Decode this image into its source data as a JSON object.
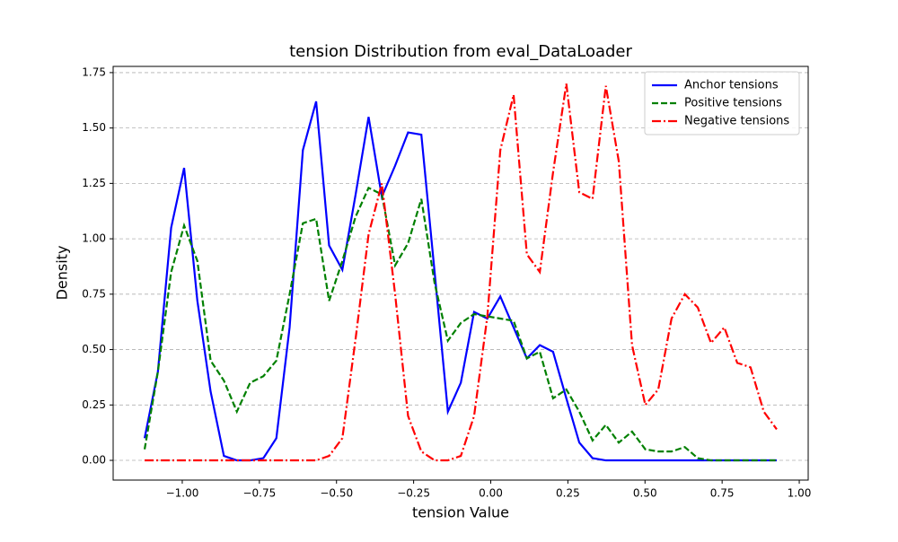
{
  "chart_data": {
    "type": "line",
    "title": "tension Distribution from eval_DataLoader",
    "x_label": "tension Value",
    "y_label": "Density",
    "x": [
      -1.122,
      -1.079,
      -1.036,
      -0.994,
      -0.951,
      -0.908,
      -0.865,
      -0.823,
      -0.78,
      -0.737,
      -0.695,
      -0.652,
      -0.609,
      -0.566,
      -0.524,
      -0.481,
      -0.438,
      -0.396,
      -0.353,
      -0.31,
      -0.268,
      -0.225,
      -0.182,
      -0.139,
      -0.097,
      -0.054,
      -0.011,
      0.031,
      0.074,
      0.117,
      0.159,
      0.202,
      0.245,
      0.287,
      0.33,
      0.373,
      0.415,
      0.458,
      0.501,
      0.543,
      0.586,
      0.629,
      0.671,
      0.714,
      0.757,
      0.799,
      0.842,
      0.885,
      0.927
    ],
    "series": [
      {
        "name": "Anchor tensions",
        "color": "#0000ff",
        "linestyle": "solid",
        "values": [
          0.1,
          0.4,
          1.05,
          1.32,
          0.72,
          0.31,
          0.02,
          0,
          0,
          0.01,
          0.1,
          0.6,
          1.4,
          1.62,
          0.97,
          0.86,
          1.2,
          1.55,
          1.19,
          1.33,
          1.48,
          1.47,
          0.85,
          0.22,
          0.35,
          0.67,
          0.64,
          0.74,
          0.6,
          0.46,
          0.52,
          0.49,
          0.28,
          0.08,
          0.01,
          0,
          0,
          0,
          0,
          0,
          0,
          0,
          0,
          0,
          0,
          0,
          0,
          0,
          0
        ]
      },
      {
        "name": "Positive tensions",
        "color": "#008000",
        "linestyle": "dashed",
        "values": [
          0.05,
          0.4,
          0.85,
          1.06,
          0.9,
          0.45,
          0.36,
          0.22,
          0.35,
          0.38,
          0.45,
          0.75,
          1.07,
          1.09,
          0.72,
          0.9,
          1.1,
          1.23,
          1.2,
          0.88,
          0.98,
          1.18,
          0.8,
          0.54,
          0.62,
          0.66,
          0.65,
          0.64,
          0.63,
          0.46,
          0.49,
          0.28,
          0.32,
          0.22,
          0.09,
          0.16,
          0.08,
          0.13,
          0.05,
          0.04,
          0.04,
          0.06,
          0.01,
          0,
          0,
          0,
          0,
          0,
          0
        ]
      },
      {
        "name": "Negative tensions",
        "color": "#ff0000",
        "linestyle": "dashdot",
        "values": [
          0,
          0,
          0,
          0,
          0,
          0,
          0,
          0,
          0,
          0,
          0,
          0,
          0,
          0,
          0.02,
          0.1,
          0.55,
          1.02,
          1.25,
          0.75,
          0.2,
          0.04,
          0,
          0,
          0.02,
          0.2,
          0.65,
          1.4,
          1.65,
          0.93,
          0.85,
          1.3,
          1.7,
          1.21,
          1.18,
          1.69,
          1.35,
          0.52,
          0.25,
          0.32,
          0.64,
          0.75,
          0.69,
          0.53,
          0.6,
          0.44,
          0.42,
          0.22,
          0.14
        ]
      }
    ],
    "xlim": [
      -1.224,
      1.029
    ],
    "ylim": [
      -0.089,
      1.778
    ],
    "xticks": [
      {
        "value": -1,
        "label": "−1.00"
      },
      {
        "value": -0.75,
        "label": "−0.75"
      },
      {
        "value": -0.5,
        "label": "−0.50"
      },
      {
        "value": -0.25,
        "label": "−0.25"
      },
      {
        "value": 0,
        "label": "0.00"
      },
      {
        "value": 0.25,
        "label": "0.25"
      },
      {
        "value": 0.5,
        "label": "0.50"
      },
      {
        "value": 0.75,
        "label": "0.75"
      },
      {
        "value": 1,
        "label": "1.00"
      }
    ],
    "yticks": [
      {
        "value": 0,
        "label": "0.00"
      },
      {
        "value": 0.25,
        "label": "0.25"
      },
      {
        "value": 0.5,
        "label": "0.50"
      },
      {
        "value": 0.75,
        "label": "0.75"
      },
      {
        "value": 1,
        "label": "1.00"
      },
      {
        "value": 1.25,
        "label": "1.25"
      },
      {
        "value": 1.5,
        "label": "1.50"
      },
      {
        "value": 1.75,
        "label": "1.75"
      }
    ],
    "grid": "y",
    "legend": "upper right"
  }
}
